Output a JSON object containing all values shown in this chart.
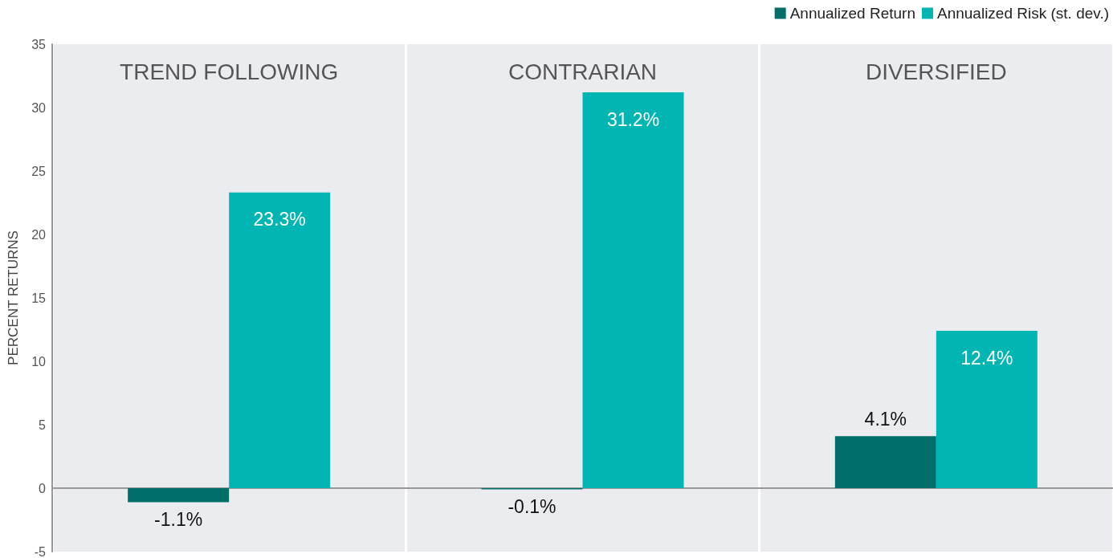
{
  "chart_data": {
    "type": "bar",
    "ylabel": "PERCENT RETURNS",
    "categories": [
      "TREND FOLLOWING",
      "CONTRARIAN",
      "DIVERSIFIED"
    ],
    "series": [
      {
        "name": "Annualized Return",
        "color": "#006f6a",
        "values": [
          -1.1,
          -0.1,
          4.1
        ],
        "value_labels": [
          "-1.1%",
          "-0.1%",
          "4.1%"
        ]
      },
      {
        "name": "Annualized Risk (st. dev.)",
        "color": "#00b5b2",
        "values": [
          23.3,
          31.2,
          12.4
        ],
        "value_labels": [
          "23.3%",
          "31.2%",
          "12.4%"
        ]
      }
    ],
    "ylim": [
      -5,
      35
    ],
    "yticks": [
      -5,
      0,
      5,
      10,
      15,
      20,
      25,
      30,
      35
    ],
    "grid": false,
    "legend": "top right"
  }
}
